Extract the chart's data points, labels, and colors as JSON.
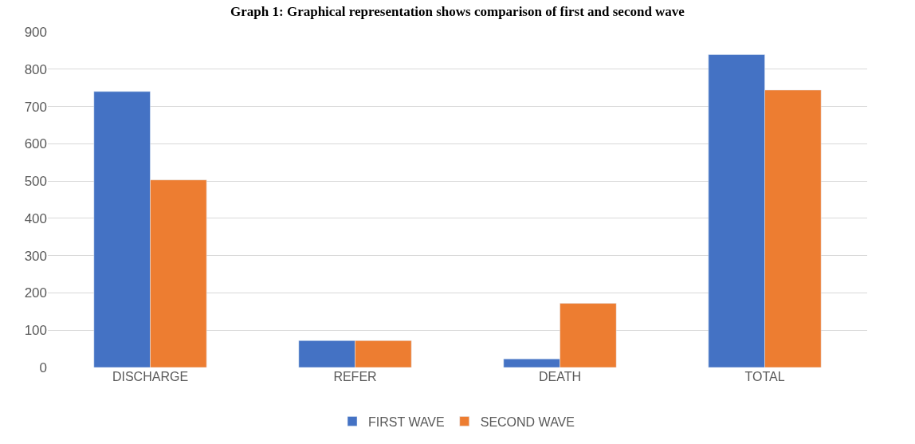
{
  "chart_data": {
    "type": "bar",
    "title": "Graph 1: Graphical representation shows comparison of first and second wave",
    "categories": [
      "DISCHARGE",
      "REFER",
      "DEATH",
      "TOTAL"
    ],
    "series": [
      {
        "name": "FIRST WAVE",
        "color": "#4472c4",
        "values": [
          740,
          72,
          23,
          839
        ]
      },
      {
        "name": "SECOND WAVE",
        "color": "#ed7d31",
        "values": [
          503,
          72,
          172,
          744
        ]
      }
    ],
    "ylim": [
      0,
      900
    ],
    "yticks": [
      0,
      100,
      200,
      300,
      400,
      500,
      600,
      700,
      800,
      900
    ],
    "grid": "y",
    "legend": "bottom"
  }
}
